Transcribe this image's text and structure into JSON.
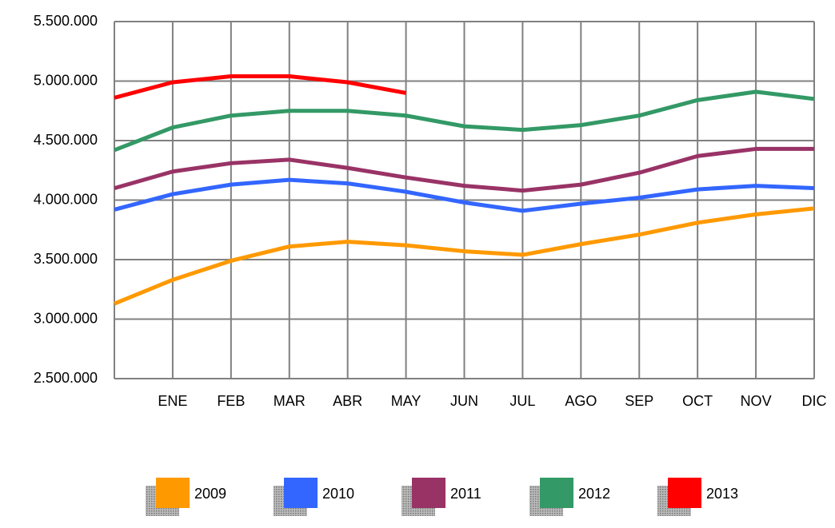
{
  "chart_data": {
    "type": "line",
    "categories": [
      null,
      "ENE",
      "FEB",
      "MAR",
      "ABR",
      "MAY",
      "JUN",
      "JUL",
      "AGO",
      "SEP",
      "OCT",
      "NOV",
      "DIC"
    ],
    "series": [
      {
        "name": "2009",
        "color": "#ff9900",
        "values": [
          3130000,
          3330000,
          3490000,
          3610000,
          3650000,
          3620000,
          3570000,
          3540000,
          3630000,
          3710000,
          3810000,
          3880000,
          3930000
        ]
      },
      {
        "name": "2010",
        "color": "#3366ff",
        "values": [
          3920000,
          4050000,
          4130000,
          4170000,
          4140000,
          4070000,
          3980000,
          3910000,
          3970000,
          4020000,
          4090000,
          4120000,
          4100000
        ]
      },
      {
        "name": "2011",
        "color": "#993366",
        "values": [
          4100000,
          4240000,
          4310000,
          4340000,
          4270000,
          4190000,
          4120000,
          4080000,
          4130000,
          4230000,
          4370000,
          4430000,
          4430000
        ]
      },
      {
        "name": "2012",
        "color": "#339966",
        "values": [
          4420000,
          4610000,
          4710000,
          4750000,
          4750000,
          4710000,
          4620000,
          4590000,
          4630000,
          4710000,
          4840000,
          4910000,
          4850000
        ]
      },
      {
        "name": "2013",
        "color": "#ff0000",
        "values": [
          4860000,
          4990000,
          5040000,
          5040000,
          4990000,
          4900000,
          null,
          null,
          null,
          null,
          null,
          null,
          null
        ]
      }
    ],
    "ylim": [
      2500000,
      5500000
    ],
    "yticks": [
      {
        "value": 2500000,
        "label": "2.500.000"
      },
      {
        "value": 3000000,
        "label": "3.000.000"
      },
      {
        "value": 3500000,
        "label": "3.500.000"
      },
      {
        "value": 4000000,
        "label": "4.000.000"
      },
      {
        "value": 4500000,
        "label": "4.500.000"
      },
      {
        "value": 5000000,
        "label": "5.000.000"
      },
      {
        "value": 5500000,
        "label": "5.500.000"
      }
    ],
    "grid": true,
    "legend": "bottom"
  }
}
